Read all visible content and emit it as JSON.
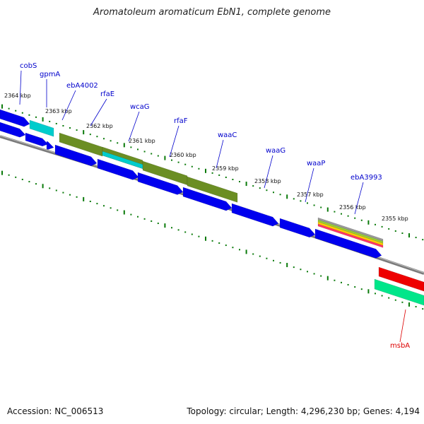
{
  "title": "Aromatoleum aromaticum EbN1, complete genome",
  "footer": {
    "accession": "Accession: NC_006513",
    "summary": "Topology: circular; Length: 4,296,230 bp; Genes: 4,194"
  },
  "ticks": [
    {
      "label": "2364 kbp"
    },
    {
      "label": "2363 kbp"
    },
    {
      "label": "2362 kbp"
    },
    {
      "label": "2361 kbp"
    },
    {
      "label": "2360 kbp"
    },
    {
      "label": "2359 kbp"
    },
    {
      "label": "2358 kbp"
    },
    {
      "label": "2357 kbp"
    },
    {
      "label": "2356 kbp"
    },
    {
      "label": "2355 kbp"
    }
  ],
  "gene_labels": [
    {
      "name": "cobS",
      "color": "#0000cc"
    },
    {
      "name": "gpmA",
      "color": "#0000cc"
    },
    {
      "name": "ebA4002",
      "color": "#0000cc"
    },
    {
      "name": "rfaE",
      "color": "#0000cc"
    },
    {
      "name": "wcaG",
      "color": "#0000cc"
    },
    {
      "name": "rfaF",
      "color": "#0000cc"
    },
    {
      "name": "waaC",
      "color": "#0000cc"
    },
    {
      "name": "waaG",
      "color": "#0000cc"
    },
    {
      "name": "waaP",
      "color": "#0000cc"
    },
    {
      "name": "ebA3993",
      "color": "#0000cc"
    },
    {
      "name": "msbA",
      "color": "#dd0000"
    }
  ],
  "colors": {
    "cds": "#0000ee",
    "cog_olive": "#6b8e23",
    "cog_cyan": "#00cccc",
    "red": "#ee0000",
    "mint": "#00e68a",
    "backbone": "#888888",
    "ticks": "#0a7a0a"
  }
}
